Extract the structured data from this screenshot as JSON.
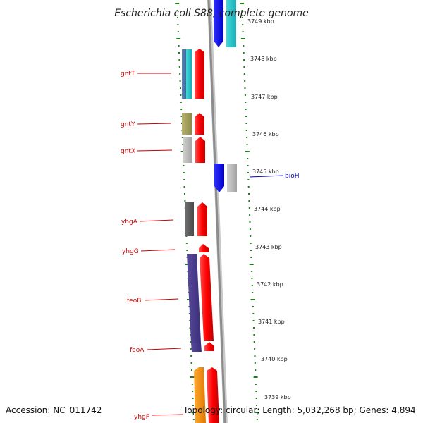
{
  "title": "Escherichia coli S88, complete genome",
  "footer": {
    "accession": "Accession: NC_011742",
    "topology": "Topology: circular; Length: 5,032,268 bp; Genes: 4,894"
  },
  "colors": {
    "ruler_dot": "#1e7f1e",
    "backbone": "#8c8c8c",
    "label_left": "#cc0000",
    "label_right": "#0000bb"
  },
  "kbp_labels": [
    "3749 kbp",
    "3748 kbp",
    "3747 kbp",
    "3746 kbp",
    "3745 kbp",
    "3744 kbp",
    "3743 kbp",
    "3742 kbp",
    "3741 kbp",
    "3740 kbp",
    "3739 kbp"
  ],
  "genes": [
    {
      "name": "gntT",
      "side": "left"
    },
    {
      "name": "gntY",
      "side": "left"
    },
    {
      "name": "gntX",
      "side": "left"
    },
    {
      "name": "bioH",
      "side": "right"
    },
    {
      "name": "yhgA",
      "side": "left"
    },
    {
      "name": "yhgG",
      "side": "left"
    },
    {
      "name": "feoB",
      "side": "left"
    },
    {
      "name": "feoA",
      "side": "left"
    },
    {
      "name": "yhgF",
      "side": "left"
    }
  ]
}
